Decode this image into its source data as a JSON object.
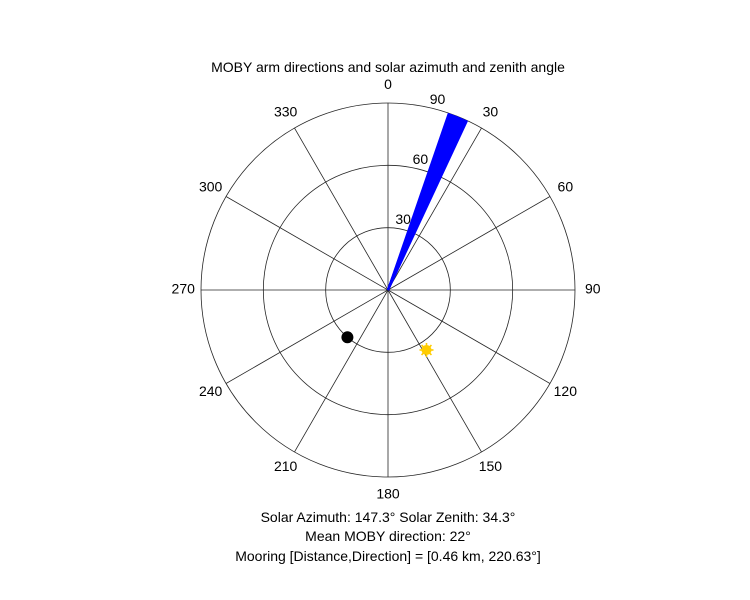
{
  "chart_data": {
    "type": "polar",
    "title": "MOBY arm directions and solar azimuth and zenith angle",
    "theta_zero": "top",
    "theta_direction": "clockwise",
    "theta_ticks": [
      0,
      30,
      60,
      90,
      120,
      150,
      180,
      210,
      240,
      270,
      300,
      330
    ],
    "theta_tick_labels": [
      "0",
      "30",
      "60",
      "90",
      "120",
      "150",
      "180",
      "210",
      "240",
      "270",
      "300",
      "330"
    ],
    "r_range": [
      0,
      90
    ],
    "r_ticks": [
      30,
      60,
      90
    ],
    "r_tick_labels": [
      "30",
      "60",
      "90"
    ],
    "grid": true,
    "arm_directions": {
      "color": "#0000ff",
      "r": 90,
      "angles_deg": [
        19.0,
        19.5,
        20.0,
        20.5,
        21.0,
        21.5,
        22.0,
        22.5,
        23.0,
        23.5,
        24.0,
        24.5,
        25.0
      ]
    },
    "solar_position": {
      "azimuth": 147.3,
      "zenith": 34.3,
      "color": "#ffcc00",
      "marker": "sun"
    },
    "mooring_marker": {
      "azimuth": 220.63,
      "r": 30,
      "color": "#000000",
      "marker": "dot"
    },
    "captions": {
      "solar": "Solar Azimuth: 147.3°    Solar Zenith: 34.3°",
      "mean_direction": "Mean MOBY direction: 22°",
      "mooring": "Mooring [Distance,Direction] = [0.46 km, 220.63°]"
    }
  }
}
